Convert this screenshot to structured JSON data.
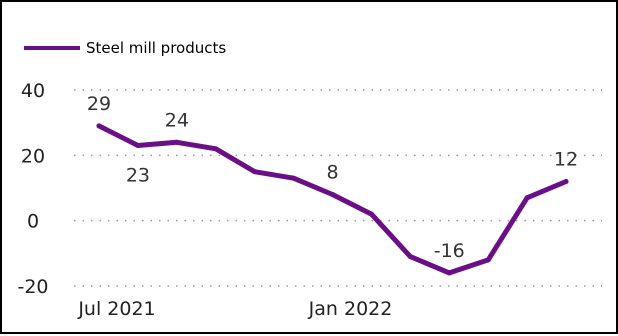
{
  "chart_data": {
    "type": "line",
    "title": "",
    "xlabel": "",
    "ylabel": "",
    "x": [
      "2021-07",
      "2021-08",
      "2021-09",
      "2021-10",
      "2021-11",
      "2021-12",
      "2022-01",
      "2022-02",
      "2022-03",
      "2022-04",
      "2022-05",
      "2022-06",
      "2022-07"
    ],
    "x_tick_labels": [
      {
        "label": "Jul 2021",
        "x": "2021-07"
      },
      {
        "label": "Jan 2022",
        "x": "2022-01"
      }
    ],
    "ylim": [
      -20,
      40
    ],
    "y_ticks": [
      -20,
      0,
      20,
      40
    ],
    "grid": true,
    "legend": {
      "position": "top-left",
      "entries": [
        "Steel mill products"
      ]
    },
    "series": [
      {
        "name": "Steel mill products",
        "color": "#6b0f87",
        "values": [
          29,
          23,
          24,
          22,
          15,
          13,
          8,
          2,
          -11,
          -16,
          -12,
          7,
          12
        ],
        "data_labels": [
          {
            "index": 0,
            "text": "29"
          },
          {
            "index": 1,
            "text": "23"
          },
          {
            "index": 2,
            "text": "24"
          },
          {
            "index": 6,
            "text": "8"
          },
          {
            "index": 9,
            "text": "-16"
          },
          {
            "index": 12,
            "text": "12"
          }
        ]
      }
    ]
  }
}
